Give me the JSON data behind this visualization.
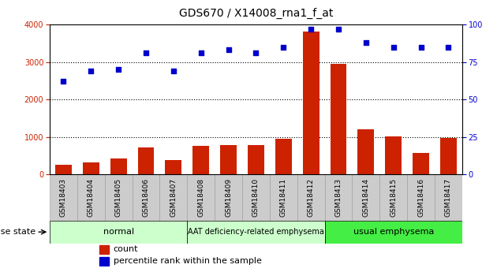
{
  "title": "GDS670 / X14008_rna1_f_at",
  "samples": [
    "GSM18403",
    "GSM18404",
    "GSM18405",
    "GSM18406",
    "GSM18407",
    "GSM18408",
    "GSM18409",
    "GSM18410",
    "GSM18411",
    "GSM18412",
    "GSM18413",
    "GSM18414",
    "GSM18415",
    "GSM18416",
    "GSM18417"
  ],
  "counts": [
    250,
    310,
    420,
    720,
    390,
    760,
    790,
    780,
    950,
    3820,
    2950,
    1200,
    1020,
    570,
    970
  ],
  "percentiles": [
    62,
    69,
    70,
    81,
    69,
    81,
    83,
    81,
    85,
    97,
    97,
    88,
    85,
    85,
    85
  ],
  "disease_groups": [
    {
      "label": "normal",
      "start": 0,
      "end": 5,
      "color": "#ccffcc"
    },
    {
      "label": "AAT deficiency-related emphysema",
      "start": 5,
      "end": 10,
      "color": "#ccffcc"
    },
    {
      "label": "usual emphysema",
      "start": 10,
      "end": 15,
      "color": "#44ee44"
    }
  ],
  "bar_color": "#cc2200",
  "dot_color": "#0000cc",
  "tick_label_bg": "#cccccc",
  "tick_label_edge": "#999999",
  "ylim_left": [
    0,
    4000
  ],
  "ylim_right": [
    0,
    100
  ],
  "yticks_left": [
    0,
    1000,
    2000,
    3000,
    4000
  ],
  "yticks_right": [
    0,
    25,
    50,
    75,
    100
  ],
  "background_color": "#ffffff",
  "title_fontsize": 10,
  "tick_fontsize": 7,
  "legend_fontsize": 8,
  "label_fontsize": 8,
  "gsm_fontsize": 6.5
}
